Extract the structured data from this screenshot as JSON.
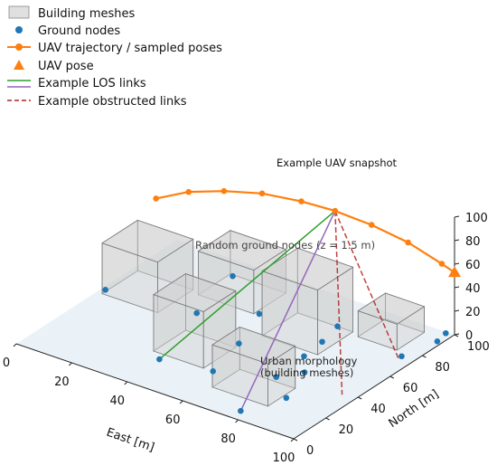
{
  "chart_data": {
    "type": "scatter",
    "projection": "3d",
    "legend": {
      "placement": "top-left",
      "entries": [
        {
          "label": "Building meshes",
          "marker": "patch",
          "color": "#d3d3d3"
        },
        {
          "label": "Ground nodes",
          "marker": "circle",
          "color": "#1f77b4"
        },
        {
          "label": "UAV trajectory / sampled poses",
          "marker": "line-circle",
          "color": "#ff7f0e"
        },
        {
          "label": "UAV pose",
          "marker": "triangle",
          "color": "#ff7f0e"
        },
        {
          "label": "Example LOS links",
          "marker": "line",
          "color": "#2ca02c"
        },
        {
          "label": "",
          "marker": "line",
          "color": "#9467bd"
        },
        {
          "label": "Example obstructed links",
          "marker": "dashed",
          "color": "#b22222"
        }
      ]
    },
    "axes": {
      "x": {
        "label": "East [m]",
        "range": [
          0,
          100
        ],
        "ticks": [
          "0",
          "20",
          "40",
          "60",
          "80",
          "100"
        ]
      },
      "y": {
        "label": "North [m]",
        "range": [
          0,
          100
        ],
        "ticks": [
          "0",
          "20",
          "40",
          "60",
          "80",
          "100"
        ]
      },
      "z": {
        "label": "",
        "range": [
          0,
          100
        ],
        "ticks": [
          "0",
          "20",
          "40",
          "60",
          "80",
          "100"
        ]
      }
    },
    "annotations": [
      "Example UAV snapshot",
      "Random ground nodes (z = 1.5 m)",
      "Urban morphology\n(building meshes)"
    ],
    "buildings": [
      {
        "x": [
          2,
          22
        ],
        "y": [
          50,
          72
        ],
        "h": 43
      },
      {
        "x": [
          25,
          45
        ],
        "y": [
          70,
          90
        ],
        "h": 37
      },
      {
        "x": [
          35,
          53
        ],
        "y": [
          25,
          45
        ],
        "h": 48
      },
      {
        "x": [
          55,
          75
        ],
        "y": [
          58,
          80
        ],
        "h": 55
      },
      {
        "x": [
          62,
          82
        ],
        "y": [
          15,
          32
        ],
        "h": 36
      },
      {
        "x": [
          78,
          92
        ],
        "y": [
          78,
          95
        ],
        "h": 22
      }
    ],
    "ground_nodes": [
      {
        "x": 2,
        "y": 52
      },
      {
        "x": 27,
        "y": 88
      },
      {
        "x": 32,
        "y": 57
      },
      {
        "x": 40,
        "y": 20
      },
      {
        "x": 47,
        "y": 70
      },
      {
        "x": 53,
        "y": 47
      },
      {
        "x": 57,
        "y": 24
      },
      {
        "x": 70,
        "y": 79
      },
      {
        "x": 72,
        "y": 66
      },
      {
        "x": 73,
        "y": 53
      },
      {
        "x": 74,
        "y": 34
      },
      {
        "x": 78,
        "y": 5
      },
      {
        "x": 79,
        "y": 43
      },
      {
        "x": 84,
        "y": 23
      },
      {
        "x": 96,
        "y": 74
      },
      {
        "x": 98,
        "y": 98
      },
      {
        "x": 99,
        "y": 91
      }
    ],
    "trajectory": [
      {
        "x": 4,
        "y": 80,
        "z": 56
      },
      {
        "x": 14,
        "y": 83,
        "z": 67
      },
      {
        "x": 25,
        "y": 86,
        "z": 74
      },
      {
        "x": 37,
        "y": 89,
        "z": 79
      },
      {
        "x": 50,
        "y": 91,
        "z": 81
      },
      {
        "x": 61,
        "y": 93,
        "z": 80
      },
      {
        "x": 73,
        "y": 95,
        "z": 76
      },
      {
        "x": 85,
        "y": 97,
        "z": 69
      },
      {
        "x": 96,
        "y": 99,
        "z": 58
      }
    ],
    "uav_pose": {
      "x": 100,
      "y": 100,
      "z": 53
    },
    "snapshot": {
      "x": 61,
      "y": 93,
      "z": 80
    },
    "los_links": [
      {
        "to": {
          "x": 40,
          "y": 20
        },
        "color": "#2ca02c"
      },
      {
        "to": {
          "x": 78,
          "y": 5
        },
        "color": "#9467bd"
      }
    ],
    "obstructed_links": [
      {
        "to": {
          "x": 96,
          "y": 37
        }
      },
      {
        "to": {
          "x": 96,
          "y": 72
        }
      }
    ]
  }
}
